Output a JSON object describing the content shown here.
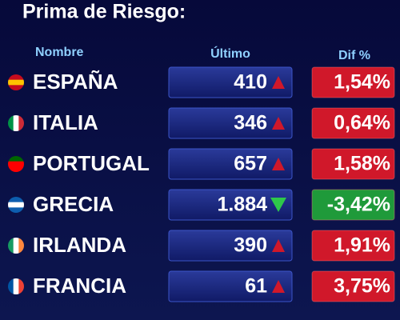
{
  "header": {
    "title": "Prima de Riesgo:"
  },
  "table": {
    "columns": [
      "Nombre",
      "Último",
      "Dif %"
    ],
    "rows": [
      {
        "name": "ESPAÑA",
        "value": "410",
        "change": "1,54%",
        "trend": "up",
        "color": "#d0182a"
      },
      {
        "name": "ITALIA",
        "value": "346",
        "change": "0,64%",
        "trend": "up",
        "color": "#d0182a"
      },
      {
        "name": "PORTUGAL",
        "value": "657",
        "change": "1,58%",
        "trend": "up",
        "color": "#d0182a"
      },
      {
        "name": "GRECIA",
        "value": "1.884",
        "change": "-3,42%",
        "trend": "down",
        "color": "#1f9a3a"
      },
      {
        "name": "IRLANDA",
        "value": "390",
        "change": "1,91%",
        "trend": "up",
        "color": "#d0182a"
      },
      {
        "name": "FRANCIA",
        "value": "61",
        "change": "3,75%",
        "trend": "up",
        "color": "#d0182a"
      }
    ]
  }
}
